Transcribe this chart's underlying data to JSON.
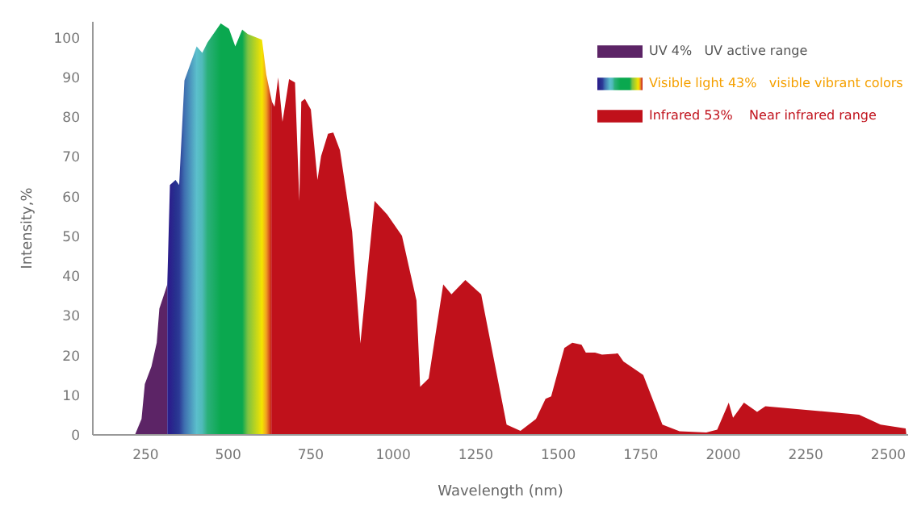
{
  "chart_data": {
    "type": "area",
    "xlabel": "Wavelength (nm)",
    "ylabel": "Intensity,%",
    "xlim": [
      90,
      2560
    ],
    "ylim": [
      0,
      104
    ],
    "xticks": [
      250,
      500,
      750,
      {
        "value": 1000,
        "label": "1000"
      },
      {
        "value": 1250,
        "label": "1250"
      },
      {
        "value": 1500,
        "label": "1500"
      },
      {
        "value": 1750,
        "label": "1750"
      },
      {
        "value": 2000,
        "label": "2000"
      },
      {
        "value": 2250,
        "label": "2250"
      },
      {
        "value": 2500,
        "label": "2500"
      }
    ],
    "yticks": [
      0,
      10,
      20,
      30,
      40,
      50,
      60,
      70,
      80,
      90,
      100
    ],
    "grid": false,
    "legend": "top right",
    "series": [
      {
        "name": "UV 4%   UV active range",
        "color": "#5c2466",
        "x": [
          221,
          240,
          250,
          270,
          286,
          294,
          310,
          318
        ],
        "values": [
          0,
          3.8,
          12.6,
          17,
          23,
          31.6,
          35.6,
          37.7
        ]
      },
      {
        "name": "Visible light 43%   visible vibrant colors",
        "colors": [
          "#2b1f8c",
          "#2b1f8c",
          "#27318f",
          "#2c3a96",
          "#3e6fb0",
          "#5bbfcc",
          "#4fbab8",
          "#2bb07a",
          "#0aa84f",
          "#0aa84f",
          "#0aa84f",
          "#0aa84f",
          "#7cc242",
          "#f5e400",
          "#f0a020",
          "#c0111b"
        ],
        "x": [
          318,
          326,
          343,
          354,
          370,
          407,
          424,
          440,
          480,
          505,
          524,
          545,
          562,
          605,
          618,
          635
        ],
        "values": [
          37.7,
          62.7,
          64,
          62.7,
          89,
          97.6,
          96,
          98.6,
          103.4,
          102,
          97.6,
          101.8,
          100.7,
          99.3,
          90.5,
          83.7
        ]
      },
      {
        "name": "Infrared 53%    Near infrared range",
        "color": "#c0111b",
        "x": [
          635,
          643,
          654,
          667,
          687,
          705,
          718,
          724,
          735,
          753,
          773,
          784,
          805,
          821,
          841,
          878,
          903,
          946,
          984,
          1029,
          1073,
          1084,
          1110,
          1154,
          1179,
          1221,
          1269,
          1346,
          1388,
          1435,
          1464,
          1481,
          1521,
          1545,
          1573,
          1586,
          1614,
          1635,
          1683,
          1700,
          1760,
          1818,
          1870,
          1951,
          1984,
          2019,
          2032,
          2065,
          2105,
          2130,
          2414,
          2479,
          2555,
          2557
        ],
        "values": [
          83.7,
          82.4,
          89.8,
          78.6,
          89.4,
          88.5,
          58.7,
          83.7,
          84.4,
          81.7,
          64,
          70,
          75.6,
          75.9,
          71.5,
          51,
          22.8,
          58.7,
          55.3,
          49.9,
          33.6,
          11.9,
          14,
          37.7,
          35.2,
          38.8,
          35.2,
          2.4,
          0.8,
          3.8,
          8.9,
          9.5,
          21.7,
          23,
          22.5,
          20.5,
          20.5,
          20,
          20.3,
          18.3,
          14.9,
          2.4,
          0.7,
          0.4,
          1.1,
          7.9,
          4.1,
          7.9,
          5.6,
          7,
          4.9,
          2.4,
          1.4,
          0
        ]
      }
    ]
  }
}
